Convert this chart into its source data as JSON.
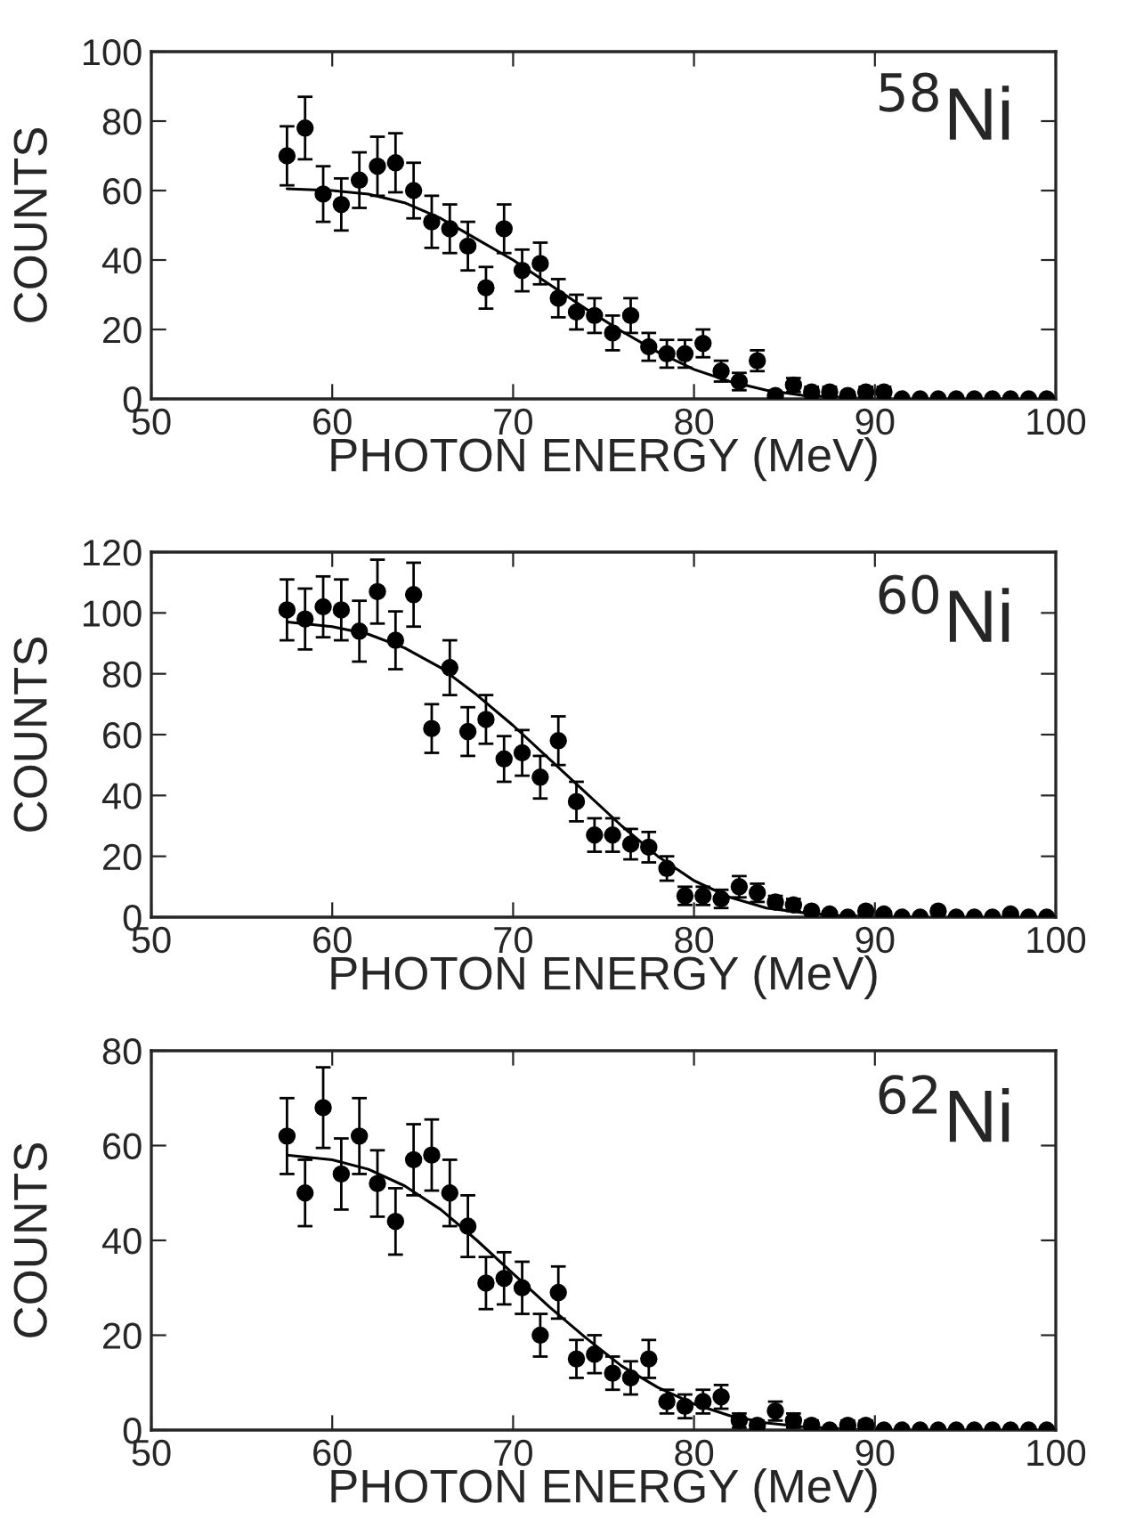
{
  "chart_data": [
    {
      "type": "scatter",
      "xlabel": "PHOTON ENERGY (MeV)",
      "ylabel": "COUNTS",
      "xlim": [
        50,
        100
      ],
      "ylim": [
        0,
        100
      ],
      "xticks": [
        50,
        60,
        70,
        80,
        90,
        100
      ],
      "yticks": [
        0,
        20,
        40,
        60,
        80,
        100
      ],
      "grid": false,
      "legend": false,
      "annotations": [
        "$^{58}$Ni"
      ],
      "series": [
        {
          "marker": "circle",
          "color": "#000000",
          "x": [
            57.5,
            58.5,
            59.5,
            60.5,
            61.5,
            62.5,
            63.5,
            64.5,
            65.5,
            66.5,
            67.5,
            68.5,
            69.5,
            70.5,
            71.5,
            72.5,
            73.5,
            74.5,
            75.5,
            76.5,
            77.5,
            78.5,
            79.5,
            80.5,
            81.5,
            82.5,
            83.5,
            84.5,
            85.5,
            86.5,
            87.5,
            88.5,
            89.5,
            90.5,
            91.5,
            92.5,
            93.5,
            94.5,
            95.5,
            96.5,
            97.5,
            98.5,
            99.5
          ],
          "values": [
            70,
            78,
            59,
            56,
            63,
            67,
            68,
            60,
            51,
            49,
            44,
            32,
            49,
            37,
            39,
            29,
            25,
            24,
            19,
            24,
            15,
            13,
            13,
            16,
            8,
            5,
            11,
            1,
            4,
            2,
            2,
            1,
            2,
            2,
            0,
            0,
            0,
            0,
            0,
            0,
            0,
            0,
            0
          ],
          "errors": [
            8.5,
            9,
            8,
            7.5,
            8,
            8.5,
            8.5,
            8,
            7.5,
            7,
            7,
            6,
            7,
            6,
            6,
            5.5,
            5,
            5,
            5,
            5,
            4,
            4,
            4,
            4,
            3,
            2.5,
            3,
            1,
            2,
            1.5,
            1.5,
            1,
            1.5,
            1.5,
            null,
            null,
            null,
            null,
            null,
            null,
            null,
            null,
            null
          ]
        },
        {
          "type": "line",
          "color": "#000000",
          "line_style": "solid",
          "x": [
            57.5,
            60,
            62,
            64,
            66,
            68,
            70,
            72,
            74,
            76,
            78,
            80,
            82,
            84,
            86,
            88,
            90
          ],
          "values": [
            60.5,
            60,
            59,
            56.5,
            52,
            46,
            40,
            33,
            26,
            19.5,
            13.5,
            8.5,
            5,
            2.5,
            1,
            0.5,
            0
          ]
        }
      ]
    },
    {
      "type": "scatter",
      "xlabel": "PHOTON ENERGY (MeV)",
      "ylabel": "COUNTS",
      "xlim": [
        50,
        100
      ],
      "ylim": [
        0,
        120
      ],
      "xticks": [
        50,
        60,
        70,
        80,
        90,
        100
      ],
      "yticks": [
        0,
        20,
        40,
        60,
        80,
        100,
        120
      ],
      "grid": false,
      "legend": false,
      "annotations": [
        "$^{60}$Ni"
      ],
      "series": [
        {
          "marker": "circle",
          "color": "#000000",
          "x": [
            57.5,
            58.5,
            59.5,
            60.5,
            61.5,
            62.5,
            63.5,
            64.5,
            65.5,
            66.5,
            67.5,
            68.5,
            69.5,
            70.5,
            71.5,
            72.5,
            73.5,
            74.5,
            75.5,
            76.5,
            77.5,
            78.5,
            79.5,
            80.5,
            81.5,
            82.5,
            83.5,
            84.5,
            85.5,
            86.5,
            87.5,
            88.5,
            89.5,
            90.5,
            91.5,
            92.5,
            93.5,
            94.5,
            95.5,
            96.5,
            97.5,
            98.5,
            99.5
          ],
          "values": [
            101,
            98,
            102,
            101,
            94,
            107,
            91,
            106,
            62,
            82,
            61,
            65,
            52,
            54,
            46,
            58,
            38,
            27,
            27,
            24,
            23,
            16,
            7,
            7,
            6,
            10,
            8,
            5,
            4,
            2,
            1,
            0,
            2,
            1,
            0,
            0,
            2,
            0,
            0,
            0,
            1,
            0,
            0
          ],
          "errors": [
            10,
            10,
            10,
            10,
            10,
            10.5,
            9.5,
            10.5,
            8,
            9,
            8,
            8,
            7.5,
            7.5,
            7,
            8,
            6.5,
            5.5,
            5.5,
            5,
            5,
            4,
            3,
            3,
            3,
            3.5,
            3,
            2,
            2,
            1,
            null,
            null,
            null,
            null,
            null,
            null,
            null,
            null,
            null,
            null,
            null,
            null,
            null
          ]
        },
        {
          "type": "line",
          "color": "#000000",
          "line_style": "solid",
          "x": [
            57.5,
            60,
            62,
            64,
            66,
            68,
            70,
            72,
            74,
            76,
            78,
            80,
            82,
            84,
            86,
            88,
            90,
            92
          ],
          "values": [
            97,
            95.5,
            93,
            88.5,
            82,
            73,
            63,
            52,
            41,
            30,
            20,
            12,
            6.5,
            3,
            1.5,
            0.5,
            0.2,
            0
          ]
        }
      ]
    },
    {
      "type": "scatter",
      "xlabel": "PHOTON ENERGY (MeV)",
      "ylabel": "COUNTS",
      "xlim": [
        50,
        100
      ],
      "ylim": [
        0,
        80
      ],
      "xticks": [
        50,
        60,
        70,
        80,
        90,
        100
      ],
      "yticks": [
        0,
        20,
        40,
        60,
        80
      ],
      "grid": false,
      "legend": false,
      "annotations": [
        "$^{62}$Ni"
      ],
      "series": [
        {
          "marker": "circle",
          "color": "#000000",
          "x": [
            57.5,
            58.5,
            59.5,
            60.5,
            61.5,
            62.5,
            63.5,
            64.5,
            65.5,
            66.5,
            67.5,
            68.5,
            69.5,
            70.5,
            71.5,
            72.5,
            73.5,
            74.5,
            75.5,
            76.5,
            77.5,
            78.5,
            79.5,
            80.5,
            81.5,
            82.5,
            83.5,
            84.5,
            85.5,
            86.5,
            87.5,
            88.5,
            89.5,
            90.5,
            91.5,
            92.5,
            93.5,
            94.5,
            95.5,
            96.5,
            97.5,
            98.5,
            99.5
          ],
          "values": [
            62,
            50,
            68,
            54,
            62,
            52,
            44,
            57,
            58,
            50,
            43,
            31,
            32,
            30,
            20,
            29,
            15,
            16,
            12,
            11,
            15,
            6,
            5,
            6,
            7,
            2,
            1,
            4,
            2,
            1,
            0,
            1,
            1,
            0,
            0,
            0,
            0,
            0,
            0,
            0,
            0,
            0,
            0
          ],
          "errors": [
            8,
            7,
            8.5,
            7.5,
            8,
            7,
            7,
            7.5,
            7.5,
            7,
            6.5,
            5.5,
            5.5,
            5.5,
            4.5,
            5.5,
            4,
            4,
            3.5,
            3.5,
            4,
            2.5,
            2.5,
            2.5,
            2.5,
            1.5,
            1,
            2,
            1.5,
            1,
            null,
            1,
            1,
            null,
            null,
            null,
            null,
            null,
            null,
            null,
            null,
            null,
            null
          ]
        },
        {
          "type": "line",
          "color": "#000000",
          "line_style": "solid",
          "x": [
            57.5,
            60,
            62,
            64,
            66,
            68,
            70,
            72,
            74,
            76,
            78,
            80,
            82,
            84,
            86,
            88,
            90
          ],
          "values": [
            58,
            57,
            55,
            51.5,
            46.5,
            40,
            33,
            26,
            19.5,
            13.5,
            9,
            5.5,
            3,
            1.5,
            0.7,
            0.3,
            0
          ]
        }
      ]
    }
  ]
}
